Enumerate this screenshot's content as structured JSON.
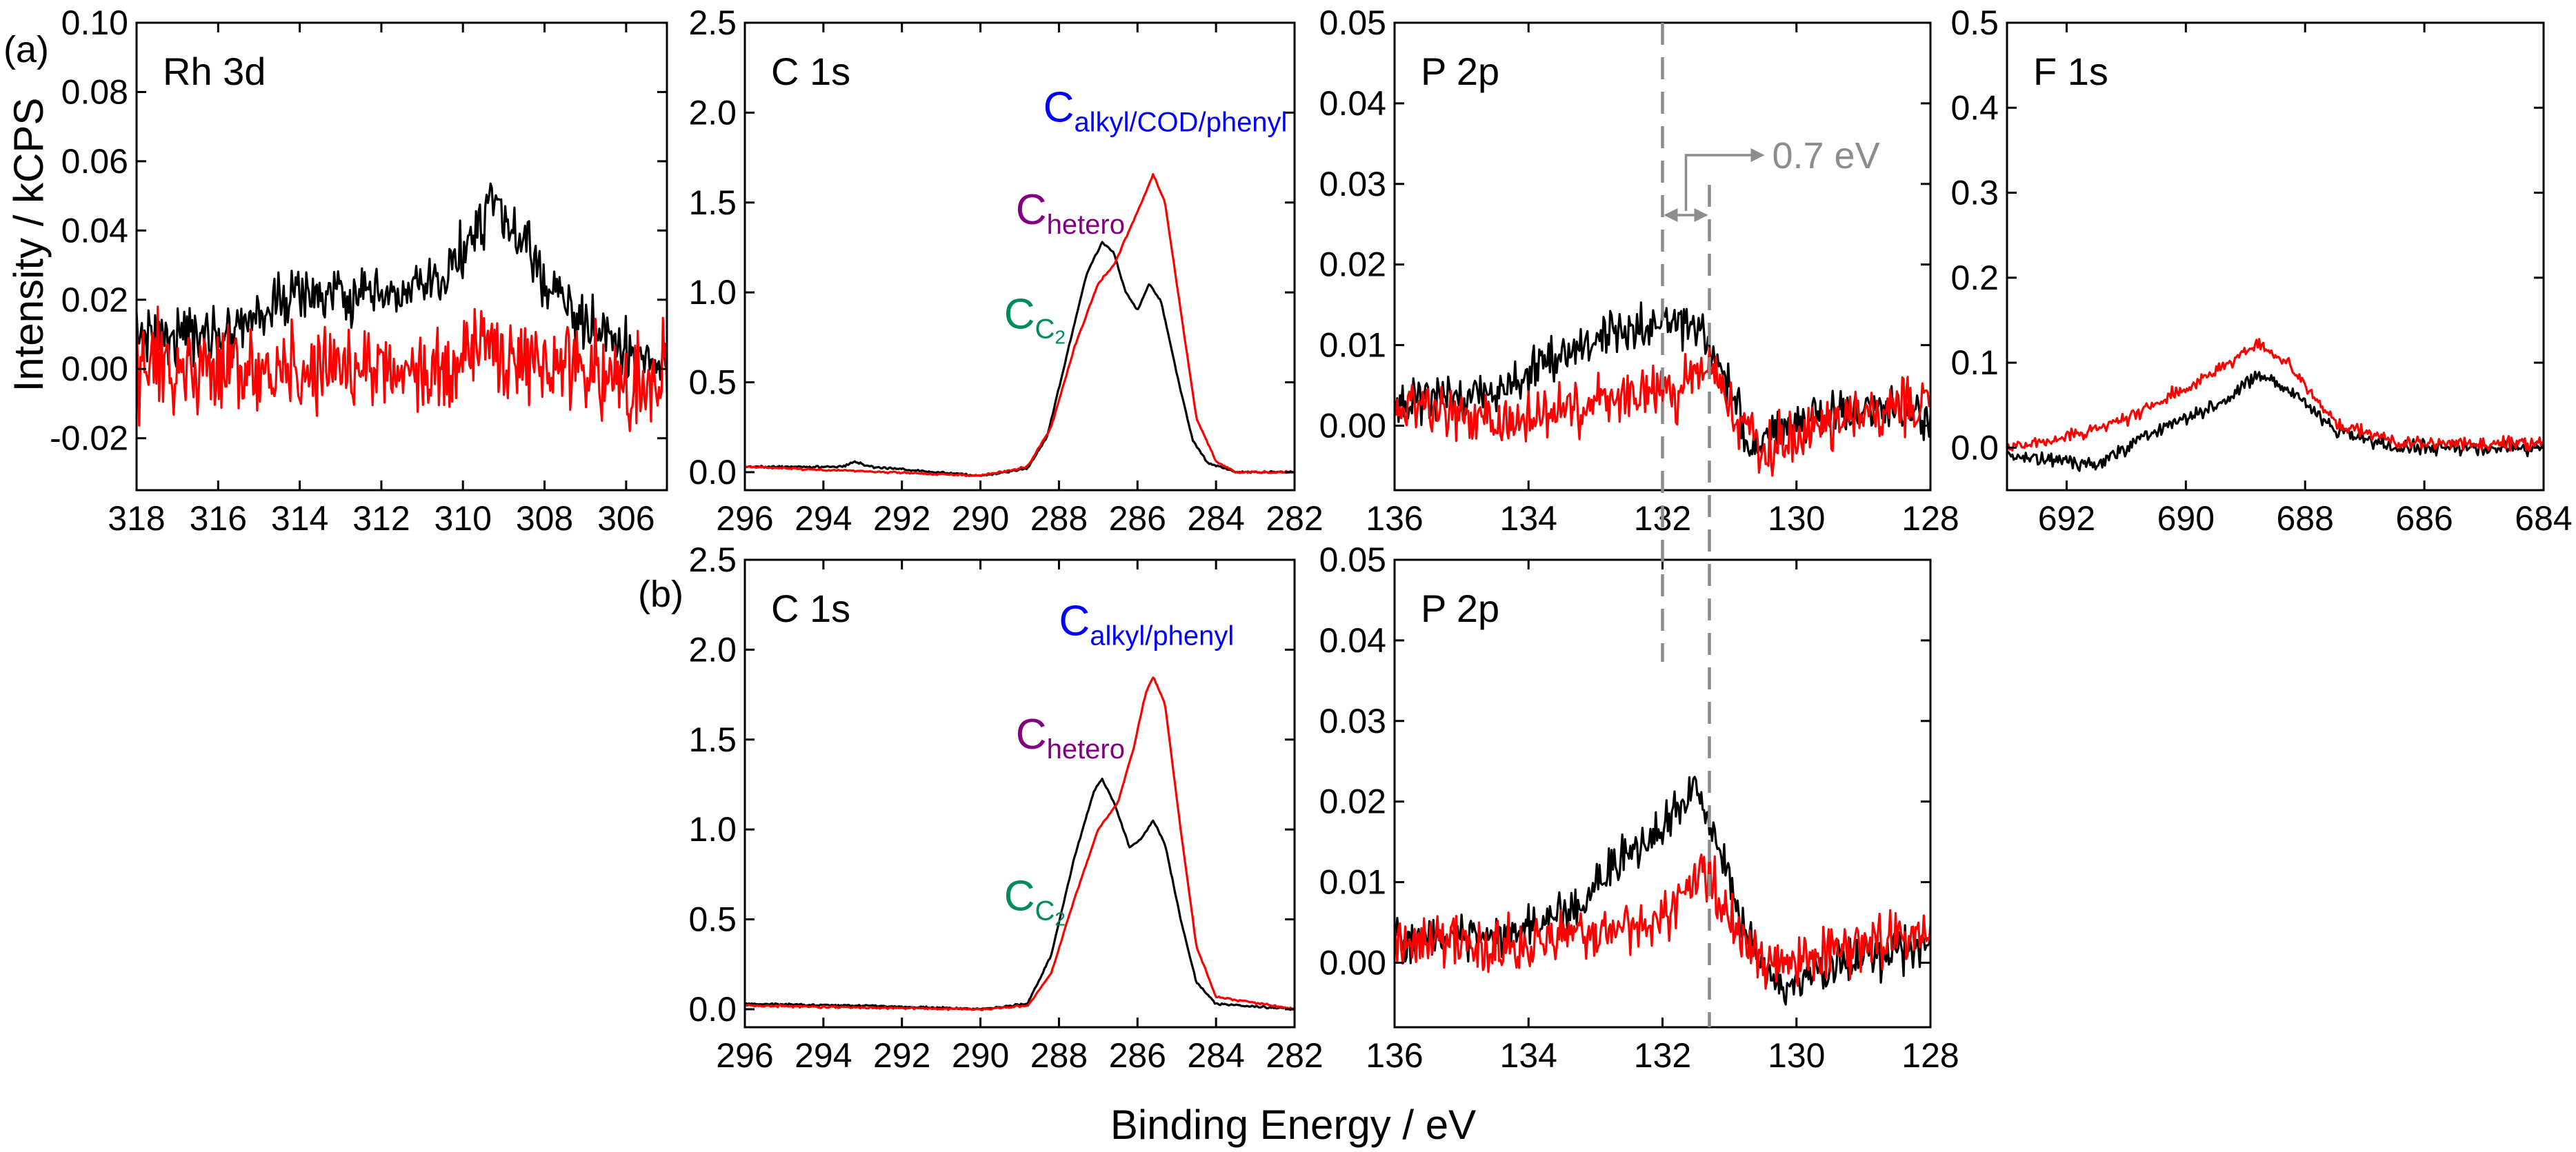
{
  "figure": {
    "xlabel": "Binding Energy / eV",
    "ylabel": "Intensity / kCPS",
    "row_labels": [
      "(a)",
      "(b)"
    ]
  },
  "colors": {
    "series_black": "#000000",
    "series_red": "#ff0000",
    "marker_gray": "#8c8c8c",
    "c_alkyl": "#0000ff",
    "c_hetero": "#800080",
    "c_c2": "#008b5a"
  },
  "chart_data": [
    {
      "id": "a_rh3d",
      "type": "line",
      "title": "Rh 3d",
      "row": "(a)",
      "xlim": [
        318,
        305
      ],
      "ylim": [
        -0.035,
        0.1
      ],
      "xticks": [
        318,
        316,
        314,
        312,
        310,
        308,
        306
      ],
      "yticks": [
        -0.02,
        0.0,
        0.02,
        0.04,
        0.06,
        0.08,
        0.1
      ],
      "ytick_labels": [
        "-0.02",
        "0.00",
        "0.02",
        "0.04",
        "0.06",
        "0.08",
        "0.10"
      ],
      "series": [
        {
          "color": "black",
          "noise": 0.012,
          "points": [
            [
              318,
              0.01
            ],
            [
              316,
              0.01
            ],
            [
              314,
              0.022
            ],
            [
              312,
              0.02
            ],
            [
              310.5,
              0.025
            ],
            [
              309.3,
              0.048
            ],
            [
              308.5,
              0.035
            ],
            [
              307.5,
              0.018
            ],
            [
              306,
              0.005
            ],
            [
              305,
              0.0
            ]
          ]
        },
        {
          "color": "red",
          "noise": 0.02,
          "points": [
            [
              318,
              0.0
            ],
            [
              314,
              0.0
            ],
            [
              311,
              0.0
            ],
            [
              309.5,
              0.005
            ],
            [
              305,
              -0.005
            ]
          ]
        }
      ]
    },
    {
      "id": "a_c1s",
      "type": "line",
      "title": "C 1s",
      "row": "(a)",
      "xlim": [
        296,
        282
      ],
      "ylim": [
        -0.1,
        2.5
      ],
      "xticks": [
        296,
        294,
        292,
        290,
        288,
        286,
        284,
        282
      ],
      "yticks": [
        0.0,
        0.5,
        1.0,
        1.5,
        2.0,
        2.5
      ],
      "ytick_labels": [
        "0.0",
        "0.5",
        "1.0",
        "1.5",
        "2.0",
        "2.5"
      ],
      "annotations": [
        {
          "main": "C",
          "sub": "alkyl/COD/phenyl",
          "color": "c_alkyl",
          "x": 288.4,
          "y": 1.95
        },
        {
          "main": "C",
          "sub": "hetero",
          "color": "c_hetero",
          "x": 289.1,
          "y": 1.38
        },
        {
          "main": "C",
          "sub": "C",
          "sub2": "2",
          "color": "c_c2",
          "x": 289.4,
          "y": 0.8
        }
      ],
      "series": [
        {
          "color": "black",
          "noise": 0.008,
          "points": [
            [
              296,
              0.03
            ],
            [
              293.5,
              0.03
            ],
            [
              293.2,
              0.06
            ],
            [
              292.8,
              0.03
            ],
            [
              290,
              -0.02
            ],
            [
              288.8,
              0.02
            ],
            [
              288.3,
              0.2
            ],
            [
              287.8,
              0.65
            ],
            [
              287.3,
              1.1
            ],
            [
              286.9,
              1.28
            ],
            [
              286.6,
              1.22
            ],
            [
              286.3,
              1.0
            ],
            [
              286.0,
              0.9
            ],
            [
              285.7,
              1.05
            ],
            [
              285.4,
              0.95
            ],
            [
              285.0,
              0.55
            ],
            [
              284.6,
              0.18
            ],
            [
              284.2,
              0.05
            ],
            [
              283.5,
              0.0
            ],
            [
              282,
              0.0
            ]
          ]
        },
        {
          "color": "red",
          "noise": 0.008,
          "points": [
            [
              296,
              0.03
            ],
            [
              290,
              -0.02
            ],
            [
              288.8,
              0.03
            ],
            [
              288.2,
              0.25
            ],
            [
              287.6,
              0.7
            ],
            [
              287.0,
              1.05
            ],
            [
              286.6,
              1.15
            ],
            [
              286.2,
              1.35
            ],
            [
              285.8,
              1.55
            ],
            [
              285.6,
              1.66
            ],
            [
              285.3,
              1.5
            ],
            [
              284.9,
              0.9
            ],
            [
              284.5,
              0.3
            ],
            [
              284.0,
              0.06
            ],
            [
              283.5,
              0.0
            ],
            [
              282,
              0.0
            ]
          ]
        }
      ]
    },
    {
      "id": "a_p2p",
      "type": "line",
      "title": "P 2p",
      "row": "(a)",
      "xlim": [
        136,
        128
      ],
      "ylim": [
        -0.008,
        0.05
      ],
      "xticks": [
        136,
        134,
        132,
        130,
        128
      ],
      "yticks": [
        0.0,
        0.01,
        0.02,
        0.03,
        0.04,
        0.05
      ],
      "ytick_labels": [
        "0.00",
        "0.01",
        "0.02",
        "0.03",
        "0.04",
        "0.05"
      ],
      "shift_label": "0.7 eV",
      "series": [
        {
          "color": "black",
          "noise": 0.004,
          "points": [
            [
              136,
              0.003
            ],
            [
              134.5,
              0.004
            ],
            [
              133.5,
              0.009
            ],
            [
              132.5,
              0.012
            ],
            [
              131.8,
              0.013
            ],
            [
              131.4,
              0.012
            ],
            [
              131.0,
              0.005
            ],
            [
              130.7,
              -0.003
            ],
            [
              130.2,
              0.0
            ],
            [
              129,
              0.002
            ],
            [
              128,
              0.001
            ]
          ]
        },
        {
          "color": "red",
          "noise": 0.005,
          "points": [
            [
              136,
              0.002
            ],
            [
              134,
              0.001
            ],
            [
              133,
              0.003
            ],
            [
              131.8,
              0.004
            ],
            [
              131.3,
              0.008
            ],
            [
              131.0,
              0.002
            ],
            [
              130.5,
              -0.003
            ],
            [
              129,
              0.002
            ],
            [
              128,
              0.003
            ]
          ]
        }
      ]
    },
    {
      "id": "a_f1s",
      "type": "line",
      "title": "F 1s",
      "row": "(a)",
      "xlim": [
        693,
        684
      ],
      "ylim": [
        -0.05,
        0.5
      ],
      "xticks": [
        692,
        690,
        688,
        686,
        684
      ],
      "yticks": [
        0.0,
        0.1,
        0.2,
        0.3,
        0.4,
        0.5
      ],
      "ytick_labels": [
        "0.0",
        "0.1",
        "0.2",
        "0.3",
        "0.4",
        "0.5"
      ],
      "series": [
        {
          "color": "black",
          "noise": 0.012,
          "points": [
            [
              693,
              -0.01
            ],
            [
              691.5,
              -0.02
            ],
            [
              690.5,
              0.02
            ],
            [
              689.5,
              0.05
            ],
            [
              688.8,
              0.085
            ],
            [
              688.3,
              0.07
            ],
            [
              687.5,
              0.02
            ],
            [
              686.5,
              0.0
            ],
            [
              684,
              0.0
            ]
          ]
        },
        {
          "color": "red",
          "noise": 0.012,
          "points": [
            [
              693,
              0.0
            ],
            [
              691.5,
              0.02
            ],
            [
              690.5,
              0.05
            ],
            [
              689.5,
              0.09
            ],
            [
              688.8,
              0.12
            ],
            [
              688.3,
              0.1
            ],
            [
              687.5,
              0.03
            ],
            [
              686.5,
              0.005
            ],
            [
              684,
              0.005
            ]
          ]
        }
      ]
    },
    {
      "id": "b_c1s",
      "type": "line",
      "title": "C 1s",
      "row": "(b)",
      "xlim": [
        296,
        282
      ],
      "ylim": [
        -0.1,
        2.5
      ],
      "xticks": [
        296,
        294,
        292,
        290,
        288,
        286,
        284,
        282
      ],
      "yticks": [
        0.0,
        0.5,
        1.0,
        1.5,
        2.0,
        2.5
      ],
      "ytick_labels": [
        "0.0",
        "0.5",
        "1.0",
        "1.5",
        "2.0",
        "2.5"
      ],
      "annotations": [
        {
          "main": "C",
          "sub": "alkyl/phenyl",
          "color": "c_alkyl",
          "x": 288.0,
          "y": 2.08
        },
        {
          "main": "C",
          "sub": "hetero",
          "color": "c_hetero",
          "x": 289.1,
          "y": 1.45
        },
        {
          "main": "C",
          "sub": "C",
          "sub2": "2",
          "color": "c_c2",
          "x": 289.4,
          "y": 0.55
        }
      ],
      "series": [
        {
          "color": "black",
          "noise": 0.008,
          "points": [
            [
              296,
              0.03
            ],
            [
              293,
              0.02
            ],
            [
              290,
              0.0
            ],
            [
              288.8,
              0.03
            ],
            [
              288.2,
              0.3
            ],
            [
              287.6,
              0.85
            ],
            [
              287.1,
              1.22
            ],
            [
              286.9,
              1.28
            ],
            [
              286.6,
              1.15
            ],
            [
              286.2,
              0.9
            ],
            [
              285.9,
              0.95
            ],
            [
              285.6,
              1.05
            ],
            [
              285.3,
              0.92
            ],
            [
              284.9,
              0.5
            ],
            [
              284.5,
              0.15
            ],
            [
              284.0,
              0.03
            ],
            [
              282,
              0.0
            ]
          ]
        },
        {
          "color": "red",
          "noise": 0.008,
          "points": [
            [
              296,
              0.02
            ],
            [
              290,
              0.0
            ],
            [
              288.8,
              0.02
            ],
            [
              288.2,
              0.2
            ],
            [
              287.6,
              0.62
            ],
            [
              287.0,
              1.0
            ],
            [
              286.5,
              1.15
            ],
            [
              286.1,
              1.45
            ],
            [
              285.8,
              1.75
            ],
            [
              285.6,
              1.85
            ],
            [
              285.3,
              1.7
            ],
            [
              284.9,
              1.0
            ],
            [
              284.5,
              0.35
            ],
            [
              284.0,
              0.07
            ],
            [
              282,
              0.0
            ]
          ]
        }
      ]
    },
    {
      "id": "b_p2p",
      "type": "line",
      "title": "P 2p",
      "row": "(b)",
      "xlim": [
        136,
        128
      ],
      "ylim": [
        -0.008,
        0.05
      ],
      "xticks": [
        136,
        134,
        132,
        130,
        128
      ],
      "yticks": [
        0.0,
        0.01,
        0.02,
        0.03,
        0.04,
        0.05
      ],
      "ytick_labels": [
        "0.00",
        "0.01",
        "0.02",
        "0.03",
        "0.04",
        "0.05"
      ],
      "series": [
        {
          "color": "black",
          "noise": 0.004,
          "points": [
            [
              136,
              0.003
            ],
            [
              134.5,
              0.003
            ],
            [
              133.5,
              0.006
            ],
            [
              132.7,
              0.012
            ],
            [
              132.0,
              0.017
            ],
            [
              131.5,
              0.022
            ],
            [
              131.0,
              0.01
            ],
            [
              130.6,
              0.0
            ],
            [
              130.2,
              -0.003
            ],
            [
              129,
              0.001
            ],
            [
              128,
              0.002
            ]
          ]
        },
        {
          "color": "red",
          "noise": 0.005,
          "points": [
            [
              136,
              0.003
            ],
            [
              134,
              0.002
            ],
            [
              133,
              0.004
            ],
            [
              132,
              0.005
            ],
            [
              131.4,
              0.012
            ],
            [
              131.0,
              0.005
            ],
            [
              130.5,
              0.0
            ],
            [
              129,
              0.002
            ],
            [
              128,
              0.003
            ]
          ]
        }
      ]
    }
  ]
}
